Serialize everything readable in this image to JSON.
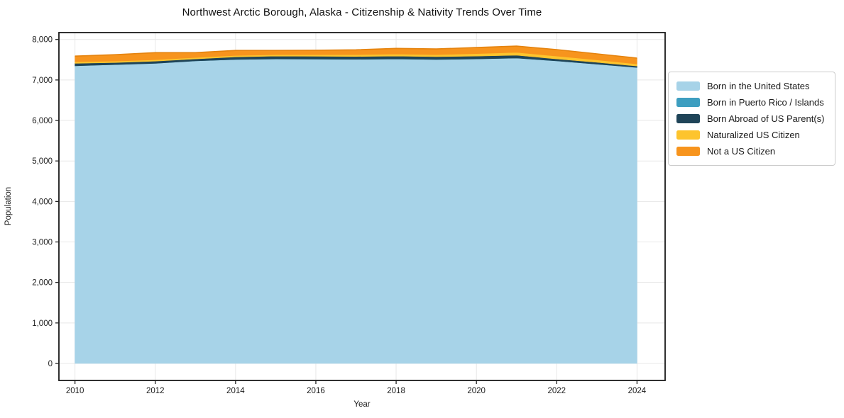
{
  "chart_data": {
    "type": "area",
    "stacked": true,
    "title": "Northwest Arctic Borough, Alaska - Citizenship & Nativity Trends Over Time",
    "xlabel": "Year",
    "ylabel": "Population",
    "x": [
      2010,
      2011,
      2012,
      2013,
      2014,
      2015,
      2016,
      2017,
      2018,
      2019,
      2020,
      2021,
      2022,
      2023,
      2024
    ],
    "x_ticks": [
      2010,
      2012,
      2014,
      2016,
      2018,
      2020,
      2022,
      2024
    ],
    "y_ticks": [
      0,
      1000,
      2000,
      3000,
      4000,
      5000,
      6000,
      7000,
      8000
    ],
    "y_tick_labels": [
      "0",
      "1,000",
      "2,000",
      "3,000",
      "4,000",
      "5,000",
      "6,000",
      "7,000",
      "8,000"
    ],
    "xlim": [
      2009.6,
      2024.7
    ],
    "ylim": [
      -420,
      8170
    ],
    "grid": true,
    "legend_position": "right",
    "background_color": "#ffffff",
    "gridline_color": "#e7e7e7",
    "spine_color": "#1a1a1a",
    "tick_color": "#222222",
    "total_edge_color": "#e5830e",
    "series": [
      {
        "name": "Born in the United States",
        "color": "#a7d3e8",
        "values": [
          7350,
          7380,
          7410,
          7470,
          7505,
          7520,
          7515,
          7510,
          7520,
          7505,
          7520,
          7540,
          7470,
          7390,
          7310
        ]
      },
      {
        "name": "Born in Puerto Rico / Islands",
        "color": "#3d9ec0",
        "values": [
          0,
          0,
          0,
          0,
          0,
          0,
          0,
          0,
          0,
          0,
          0,
          0,
          0,
          0,
          0
        ]
      },
      {
        "name": "Born Abroad of US Parent(s)",
        "color": "#1f4458",
        "values": [
          60,
          50,
          55,
          50,
          65,
          70,
          70,
          70,
          70,
          70,
          70,
          70,
          50,
          45,
          35
        ]
      },
      {
        "name": "Naturalized US Citizen",
        "color": "#fdc42d",
        "values": [
          40,
          35,
          35,
          35,
          35,
          35,
          40,
          45,
          50,
          50,
          60,
          70,
          70,
          60,
          50
        ]
      },
      {
        "name": "Not a US Citizen",
        "color": "#f7941d",
        "values": [
          140,
          160,
          175,
          120,
          125,
          105,
          110,
          120,
          140,
          140,
          150,
          155,
          160,
          150,
          145
        ]
      }
    ],
    "totals": [
      7590,
      7625,
      7675,
      7675,
      7730,
      7730,
      7735,
      7745,
      7780,
      7765,
      7800,
      7835,
      7750,
      7645,
      7540
    ]
  }
}
